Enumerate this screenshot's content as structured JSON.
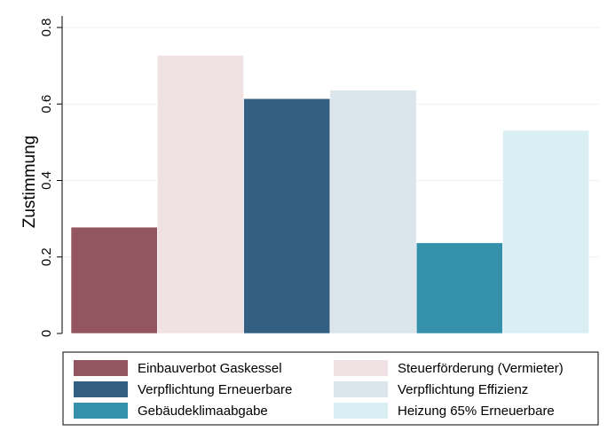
{
  "chart_data": {
    "type": "bar",
    "title": "",
    "xlabel": "",
    "ylabel": "Zustimmung",
    "ylim": [
      0,
      0.8
    ],
    "yticks": [
      "0",
      "0.2",
      "0.4",
      "0.6",
      "0.8"
    ],
    "grid": true,
    "legend_position": "bottom",
    "series": [
      {
        "name": "Einbauverbot Gaskessel",
        "value": 0.278,
        "color": "#935661"
      },
      {
        "name": "Steuerförderung (Vermieter)",
        "value": 0.727,
        "color": "#f0e1e4"
      },
      {
        "name": "Verpflichtung Erneuerbare",
        "value": 0.614,
        "color": "#335f82"
      },
      {
        "name": "Verpflichtung Effizienz",
        "value": 0.636,
        "color": "#dae5ec"
      },
      {
        "name": "Gebäudeklimaabgabe",
        "value": 0.237,
        "color": "#3590ac"
      },
      {
        "name": "Heizung 65% Erneuerbare",
        "value": 0.531,
        "color": "#daeff3"
      }
    ]
  }
}
